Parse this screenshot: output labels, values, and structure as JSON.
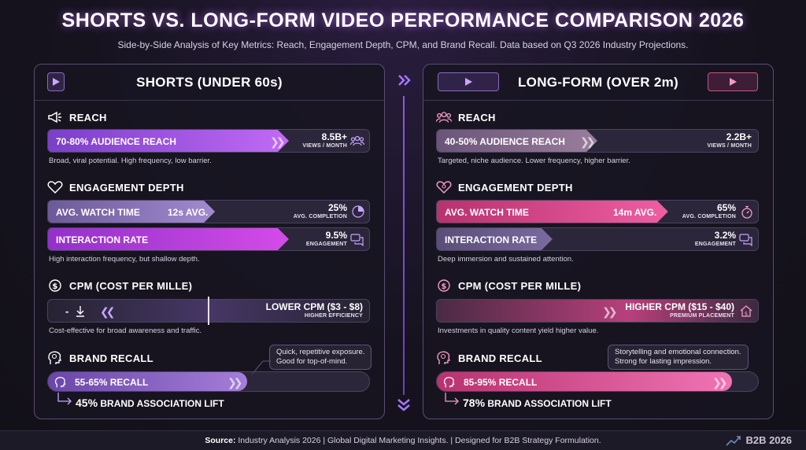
{
  "header": {
    "title": "SHORTS VS. LONG-FORM VIDEO PERFORMANCE COMPARISON 2026",
    "subtitle": "Side-by-Side Analysis of Key Metrics: Reach, Engagement Depth, CPM, and Brand Recall. Data based on Q3 2026 Industry Projections."
  },
  "colors": {
    "shorts_accent": "#b45cf0",
    "longform_accent": "#e2559f",
    "background": "#16131f"
  },
  "shorts": {
    "title": "SHORTS (UNDER 60s)",
    "reach": {
      "heading": "REACH",
      "bar_label": "70-80% AUDIENCE REACH",
      "bar_fill_fraction": 0.75,
      "stat": "8.5B+",
      "stat_unit": "VIEWS / MONTH",
      "desc": "Broad, viral potential. High frequency, low barrier."
    },
    "engagement": {
      "heading": "ENGAGEMENT DEPTH",
      "watch_label": "AVG. WATCH TIME",
      "watch_value": "12s AVG.",
      "watch_fill_fraction": 0.52,
      "watch_stat": "25%",
      "watch_unit": "AVG. COMPLETION",
      "interaction_label": "INTERACTION RATE",
      "interaction_fill_fraction": 0.75,
      "interaction_stat": "9.5%",
      "interaction_unit": "ENGAGEMENT",
      "desc": "High interaction frequency, but shallow depth."
    },
    "cpm": {
      "heading": "CPM (COST PER MILLE)",
      "minus": "-",
      "label": "LOWER CPM ($3 - $8)",
      "sub": "HIGHER EFFICIENCY",
      "desc": "Cost-effective for broad awareness and traffic."
    },
    "recall": {
      "heading": "BRAND RECALL",
      "callout_line1": "Quick, repetitive exposure.",
      "callout_line2": "Good for top-of-mind.",
      "bar_label": "55-65% RECALL",
      "bar_fill_fraction": 0.62,
      "lift_num": "45%",
      "lift_text": "BRAND ASSOCIATION LIFT"
    }
  },
  "longform": {
    "title": "LONG-FORM (OVER 2m)",
    "reach": {
      "heading": "REACH",
      "bar_label": "40-50% AUDIENCE REACH",
      "bar_fill_fraction": 0.5,
      "stat": "2.2B+",
      "stat_unit": "VIEWS / MONTH",
      "desc": "Targeted, niche audience. Lower frequency, higher barrier."
    },
    "engagement": {
      "heading": "ENGAGEMENT DEPTH",
      "watch_label": "AVG. WATCH TIME",
      "watch_value": "14m AVG.",
      "watch_fill_fraction": 0.72,
      "watch_stat": "65%",
      "watch_unit": "AVG. COMPLETION",
      "interaction_label": "INTERACTION RATE",
      "interaction_fill_fraction": 0.36,
      "interaction_stat": "3.2%",
      "interaction_unit": "ENGAGEMENT",
      "desc": "Deep immersion and sustained attention."
    },
    "cpm": {
      "heading": "CPM (COST PER MILLE)",
      "label": "HIGHER CPM ($15 - $40)",
      "sub": "PREMIUM PLACEMENT",
      "desc": "Investments in quality content yield higher value."
    },
    "recall": {
      "heading": "BRAND RECALL",
      "callout_line1": "Storytelling and emotional connection.",
      "callout_line2": "Strong for lasting impression.",
      "bar_label": "85-95% RECALL",
      "bar_fill_fraction": 0.92,
      "lift_num": "78%",
      "lift_text": "BRAND ASSOCIATION LIFT"
    }
  },
  "footer": {
    "source_label": "Source:",
    "source_text": "Industry Analysis 2026 | Global Digital Marketing Insights. | Designed for B2B Strategy Formulation.",
    "brand": "B2B 2026"
  }
}
